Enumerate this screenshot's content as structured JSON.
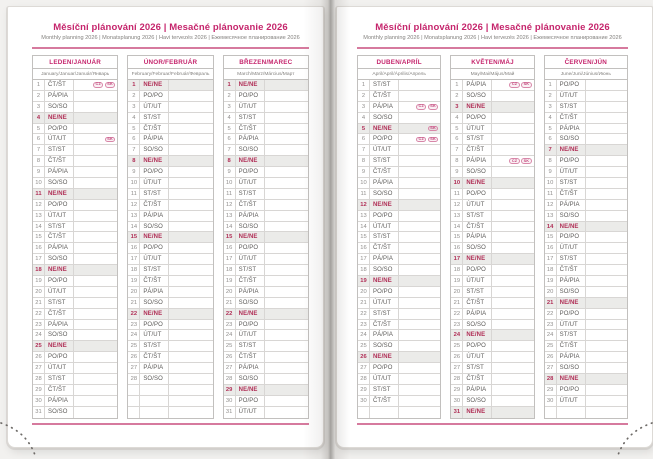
{
  "colors": {
    "accent": "#c5256c",
    "sunday": "#b02e56",
    "sunbg": "#ebebe9",
    "grid": "#c2c0be",
    "rowline": "#d8d6d4",
    "num": "#908e8c",
    "daytext": "#5d5b59",
    "subtitle": "#84827f",
    "rule": "#c84e7e",
    "bg": "#f2f1ef"
  },
  "pages": [
    {
      "title": "Měsíční plánování 2026 | Mesačné plánovanie 2026",
      "subtitle": "Monthly planning 2026 | Monatsplanung 2026 | Havi tervezés 2026 | Ежемесячное планирование 2026",
      "months": [
        {
          "name": "LEDEN/JANUÁR",
          "langs": "January/Januar/Január/Январь",
          "rows": [
            [
              1,
              "ČT/ŠT",
              0,
              [
                "CZ",
                "SK"
              ]
            ],
            [
              2,
              "PÁ/PIA",
              0
            ],
            [
              3,
              "SO/SO",
              0
            ],
            [
              4,
              "NE/NE",
              1
            ],
            [
              5,
              "PO/PO",
              0
            ],
            [
              6,
              "ÚT/UT",
              0,
              [
                "SK"
              ]
            ],
            [
              7,
              "ST/ST",
              0
            ],
            [
              8,
              "ČT/ŠT",
              0
            ],
            [
              9,
              "PÁ/PIA",
              0
            ],
            [
              10,
              "SO/SO",
              0
            ],
            [
              11,
              "NE/NE",
              1
            ],
            [
              12,
              "PO/PO",
              0
            ],
            [
              13,
              "ÚT/UT",
              0
            ],
            [
              14,
              "ST/ST",
              0
            ],
            [
              15,
              "ČT/ŠT",
              0
            ],
            [
              16,
              "PÁ/PIA",
              0
            ],
            [
              17,
              "SO/SO",
              0
            ],
            [
              18,
              "NE/NE",
              1
            ],
            [
              19,
              "PO/PO",
              0
            ],
            [
              20,
              "ÚT/UT",
              0
            ],
            [
              21,
              "ST/ST",
              0
            ],
            [
              22,
              "ČT/ŠT",
              0
            ],
            [
              23,
              "PÁ/PIA",
              0
            ],
            [
              24,
              "SO/SO",
              0
            ],
            [
              25,
              "NE/NE",
              1
            ],
            [
              26,
              "PO/PO",
              0
            ],
            [
              27,
              "ÚT/UT",
              0
            ],
            [
              28,
              "ST/ST",
              0
            ],
            [
              29,
              "ČT/ŠT",
              0
            ],
            [
              30,
              "PÁ/PIA",
              0
            ],
            [
              31,
              "SO/SO",
              0
            ]
          ]
        },
        {
          "name": "ÚNOR/FEBRUÁR",
          "langs": "February/Februar/Február/Февраль",
          "rows": [
            [
              1,
              "NE/NE",
              1
            ],
            [
              2,
              "PO/PO",
              0
            ],
            [
              3,
              "ÚT/UT",
              0
            ],
            [
              4,
              "ST/ST",
              0
            ],
            [
              5,
              "ČT/ŠT",
              0
            ],
            [
              6,
              "PÁ/PIA",
              0
            ],
            [
              7,
              "SO/SO",
              0
            ],
            [
              8,
              "NE/NE",
              1
            ],
            [
              9,
              "PO/PO",
              0
            ],
            [
              10,
              "ÚT/UT",
              0
            ],
            [
              11,
              "ST/ST",
              0
            ],
            [
              12,
              "ČT/ŠT",
              0
            ],
            [
              13,
              "PÁ/PIA",
              0
            ],
            [
              14,
              "SO/SO",
              0
            ],
            [
              15,
              "NE/NE",
              1
            ],
            [
              16,
              "PO/PO",
              0
            ],
            [
              17,
              "ÚT/UT",
              0
            ],
            [
              18,
              "ST/ST",
              0
            ],
            [
              19,
              "ČT/ŠT",
              0
            ],
            [
              20,
              "PÁ/PIA",
              0
            ],
            [
              21,
              "SO/SO",
              0
            ],
            [
              22,
              "NE/NE",
              1
            ],
            [
              23,
              "PO/PO",
              0
            ],
            [
              24,
              "ÚT/UT",
              0
            ],
            [
              25,
              "ST/ST",
              0
            ],
            [
              26,
              "ČT/ŠT",
              0
            ],
            [
              27,
              "PÁ/PIA",
              0
            ],
            [
              28,
              "SO/SO",
              0
            ],
            null,
            null,
            null
          ]
        },
        {
          "name": "BŘEZEN/MAREC",
          "langs": "March/März/Március/Март",
          "rows": [
            [
              1,
              "NE/NE",
              1
            ],
            [
              2,
              "PO/PO",
              0
            ],
            [
              3,
              "ÚT/UT",
              0
            ],
            [
              4,
              "ST/ST",
              0
            ],
            [
              5,
              "ČT/ŠT",
              0
            ],
            [
              6,
              "PÁ/PIA",
              0
            ],
            [
              7,
              "SO/SO",
              0
            ],
            [
              8,
              "NE/NE",
              1
            ],
            [
              9,
              "PO/PO",
              0
            ],
            [
              10,
              "ÚT/UT",
              0
            ],
            [
              11,
              "ST/ST",
              0
            ],
            [
              12,
              "ČT/ŠT",
              0
            ],
            [
              13,
              "PÁ/PIA",
              0
            ],
            [
              14,
              "SO/SO",
              0
            ],
            [
              15,
              "NE/NE",
              1
            ],
            [
              16,
              "PO/PO",
              0
            ],
            [
              17,
              "ÚT/UT",
              0
            ],
            [
              18,
              "ST/ST",
              0
            ],
            [
              19,
              "ČT/ŠT",
              0
            ],
            [
              20,
              "PÁ/PIA",
              0
            ],
            [
              21,
              "SO/SO",
              0
            ],
            [
              22,
              "NE/NE",
              1
            ],
            [
              23,
              "PO/PO",
              0
            ],
            [
              24,
              "ÚT/UT",
              0
            ],
            [
              25,
              "ST/ST",
              0
            ],
            [
              26,
              "ČT/ŠT",
              0
            ],
            [
              27,
              "PÁ/PIA",
              0
            ],
            [
              28,
              "SO/SO",
              0
            ],
            [
              29,
              "NE/NE",
              1
            ],
            [
              30,
              "PO/PO",
              0
            ],
            [
              31,
              "ÚT/UT",
              0
            ]
          ]
        }
      ]
    },
    {
      "title": "Měsíční plánování 2026 | Mesačné plánovanie 2026",
      "subtitle": "Monthly planning 2026 | Monatsplanung 2026 | Havi tervezés 2026 | Ежемесячное планирование 2026",
      "months": [
        {
          "name": "DUBEN/APRÍL",
          "langs": "April/April/Április/Апрель",
          "rows": [
            [
              1,
              "ST/ST",
              0
            ],
            [
              2,
              "ČT/ŠT",
              0
            ],
            [
              3,
              "PÁ/PIA",
              0,
              [
                "CZ",
                "SK"
              ]
            ],
            [
              4,
              "SO/SO",
              0
            ],
            [
              5,
              "NE/NE",
              1,
              [
                "SK"
              ]
            ],
            [
              6,
              "PO/PO",
              0,
              [
                "CZ",
                "SK"
              ]
            ],
            [
              7,
              "ÚT/UT",
              0
            ],
            [
              8,
              "ST/ST",
              0
            ],
            [
              9,
              "ČT/ŠT",
              0
            ],
            [
              10,
              "PÁ/PIA",
              0
            ],
            [
              11,
              "SO/SO",
              0
            ],
            [
              12,
              "NE/NE",
              1
            ],
            [
              13,
              "PO/PO",
              0
            ],
            [
              14,
              "ÚT/UT",
              0
            ],
            [
              15,
              "ST/ST",
              0
            ],
            [
              16,
              "ČT/ŠT",
              0
            ],
            [
              17,
              "PÁ/PIA",
              0
            ],
            [
              18,
              "SO/SO",
              0
            ],
            [
              19,
              "NE/NE",
              1
            ],
            [
              20,
              "PO/PO",
              0
            ],
            [
              21,
              "ÚT/UT",
              0
            ],
            [
              22,
              "ST/ST",
              0
            ],
            [
              23,
              "ČT/ŠT",
              0
            ],
            [
              24,
              "PÁ/PIA",
              0
            ],
            [
              25,
              "SO/SO",
              0
            ],
            [
              26,
              "NE/NE",
              1
            ],
            [
              27,
              "PO/PO",
              0
            ],
            [
              28,
              "ÚT/UT",
              0
            ],
            [
              29,
              "ST/ST",
              0
            ],
            [
              30,
              "ČT/ŠT",
              0
            ],
            null
          ]
        },
        {
          "name": "KVĚTEN/MÁJ",
          "langs": "May/Mai/Május/Май",
          "rows": [
            [
              1,
              "PÁ/PIA",
              0,
              [
                "CZ",
                "SK"
              ]
            ],
            [
              2,
              "SO/SO",
              0
            ],
            [
              3,
              "NE/NE",
              1
            ],
            [
              4,
              "PO/PO",
              0
            ],
            [
              5,
              "ÚT/UT",
              0
            ],
            [
              6,
              "ST/ST",
              0
            ],
            [
              7,
              "ČT/ŠT",
              0
            ],
            [
              8,
              "PÁ/PIA",
              0,
              [
                "CZ",
                "SK"
              ]
            ],
            [
              9,
              "SO/SO",
              0
            ],
            [
              10,
              "NE/NE",
              1
            ],
            [
              11,
              "PO/PO",
              0
            ],
            [
              12,
              "ÚT/UT",
              0
            ],
            [
              13,
              "ST/ST",
              0
            ],
            [
              14,
              "ČT/ŠT",
              0
            ],
            [
              15,
              "PÁ/PIA",
              0
            ],
            [
              16,
              "SO/SO",
              0
            ],
            [
              17,
              "NE/NE",
              1
            ],
            [
              18,
              "PO/PO",
              0
            ],
            [
              19,
              "ÚT/UT",
              0
            ],
            [
              20,
              "ST/ST",
              0
            ],
            [
              21,
              "ČT/ŠT",
              0
            ],
            [
              22,
              "PÁ/PIA",
              0
            ],
            [
              23,
              "SO/SO",
              0
            ],
            [
              24,
              "NE/NE",
              1
            ],
            [
              25,
              "PO/PO",
              0
            ],
            [
              26,
              "ÚT/UT",
              0
            ],
            [
              27,
              "ST/ST",
              0
            ],
            [
              28,
              "ČT/ŠT",
              0
            ],
            [
              29,
              "PÁ/PIA",
              0
            ],
            [
              30,
              "SO/SO",
              0
            ],
            [
              31,
              "NE/NE",
              1
            ]
          ]
        },
        {
          "name": "ČERVEN/JÚN",
          "langs": "June/Juni/Június/Июнь",
          "rows": [
            [
              1,
              "PO/PO",
              0
            ],
            [
              2,
              "ÚT/UT",
              0
            ],
            [
              3,
              "ST/ST",
              0
            ],
            [
              4,
              "ČT/ŠT",
              0
            ],
            [
              5,
              "PÁ/PIA",
              0
            ],
            [
              6,
              "SO/SO",
              0
            ],
            [
              7,
              "NE/NE",
              1
            ],
            [
              8,
              "PO/PO",
              0
            ],
            [
              9,
              "ÚT/UT",
              0
            ],
            [
              10,
              "ST/ST",
              0
            ],
            [
              11,
              "ČT/ŠT",
              0
            ],
            [
              12,
              "PÁ/PIA",
              0
            ],
            [
              13,
              "SO/SO",
              0
            ],
            [
              14,
              "NE/NE",
              1
            ],
            [
              15,
              "PO/PO",
              0
            ],
            [
              16,
              "ÚT/UT",
              0
            ],
            [
              17,
              "ST/ST",
              0
            ],
            [
              18,
              "ČT/ŠT",
              0
            ],
            [
              19,
              "PÁ/PIA",
              0
            ],
            [
              20,
              "SO/SO",
              0
            ],
            [
              21,
              "NE/NE",
              1
            ],
            [
              22,
              "PO/PO",
              0
            ],
            [
              23,
              "ÚT/UT",
              0
            ],
            [
              24,
              "ST/ST",
              0
            ],
            [
              25,
              "ČT/ŠT",
              0
            ],
            [
              26,
              "PÁ/PIA",
              0
            ],
            [
              27,
              "SO/SO",
              0
            ],
            [
              28,
              "NE/NE",
              1
            ],
            [
              29,
              "PO/PO",
              0
            ],
            [
              30,
              "ÚT/UT",
              0
            ],
            null
          ]
        }
      ]
    }
  ]
}
